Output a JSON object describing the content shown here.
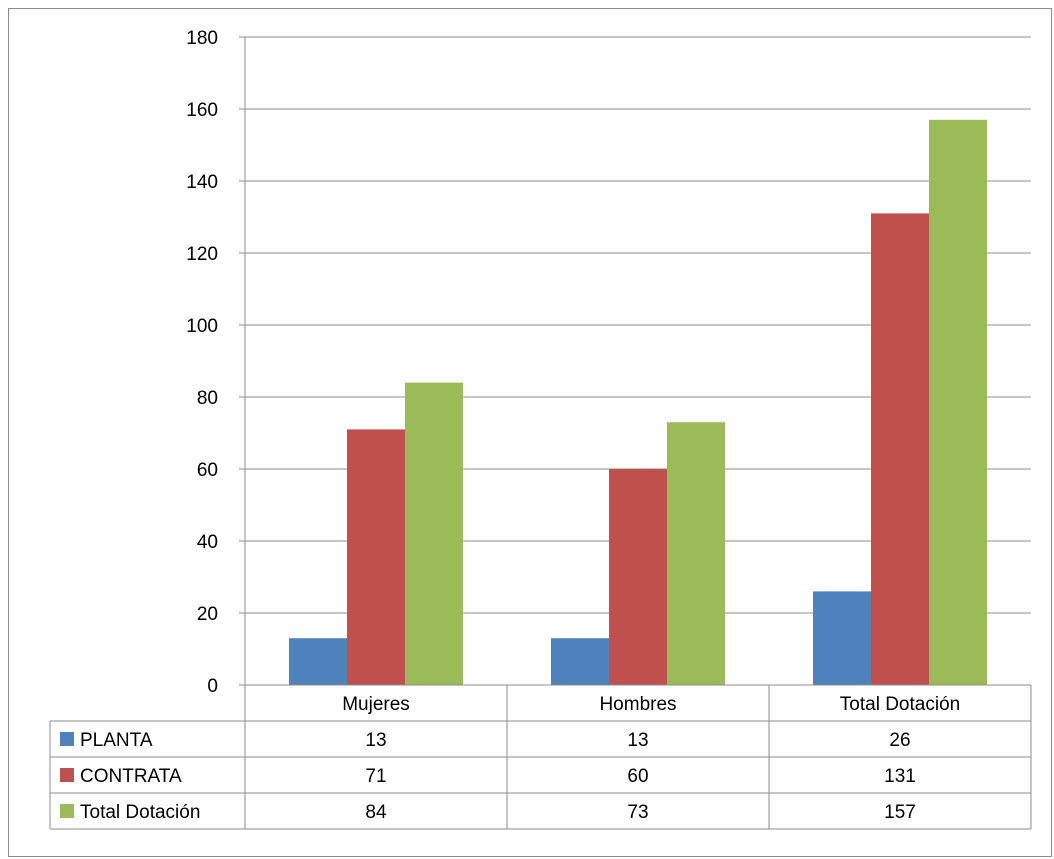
{
  "chart_data": {
    "type": "bar",
    "title": "",
    "xlabel": "",
    "ylabel": "",
    "categories": [
      "Mujeres",
      "Hombres",
      "Total Dotación"
    ],
    "series": [
      {
        "name": "PLANTA",
        "color": "#4f81bd",
        "values": [
          13,
          13,
          26
        ]
      },
      {
        "name": "CONTRATA",
        "color": "#c0504d",
        "values": [
          71,
          60,
          131
        ]
      },
      {
        "name": "Total Dotación",
        "color": "#9bbb59",
        "values": [
          84,
          73,
          157
        ]
      }
    ],
    "ylim": [
      0,
      180
    ],
    "yticks": [
      0,
      20,
      40,
      60,
      80,
      100,
      120,
      140,
      160,
      180
    ],
    "grid": true,
    "legend": "data-table",
    "data_table": true
  }
}
